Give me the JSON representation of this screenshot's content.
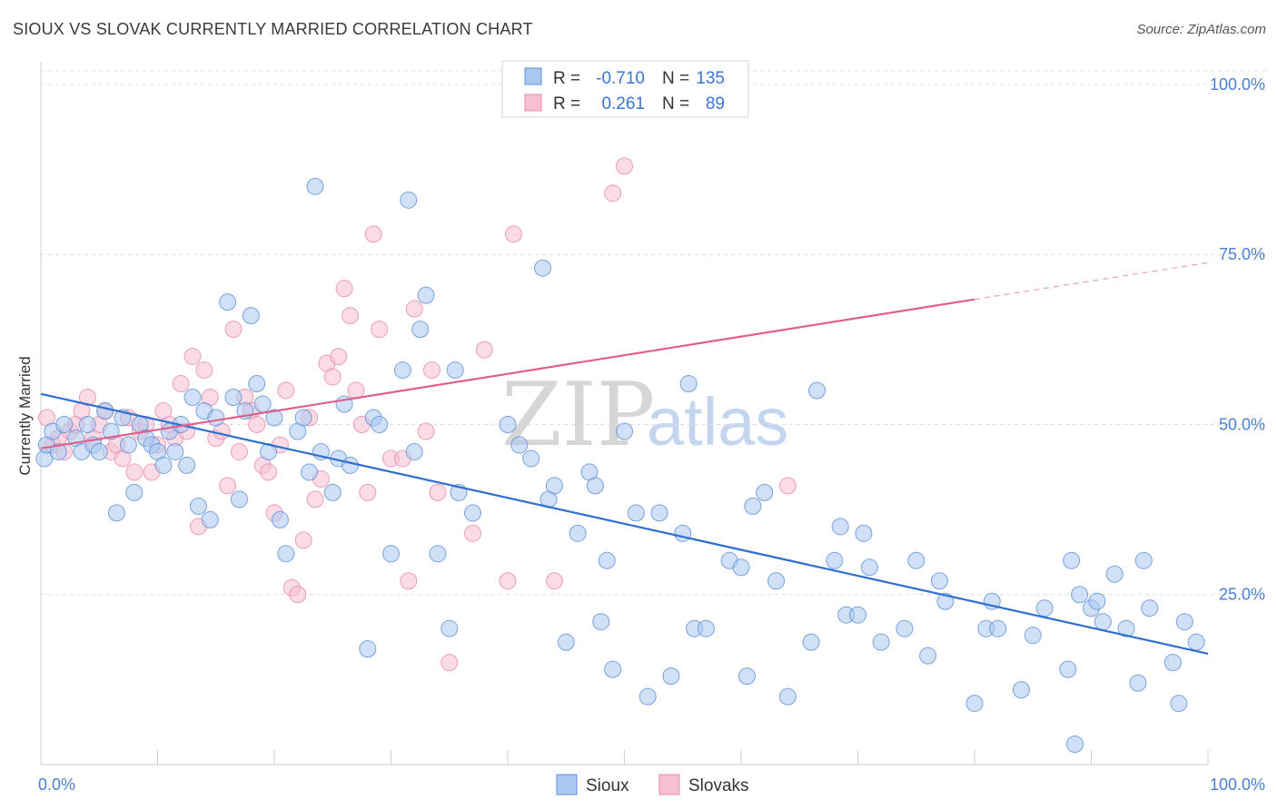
{
  "title": "SIOUX VS SLOVAK CURRENTLY MARRIED CORRELATION CHART",
  "source": "Source: ZipAtlas.com",
  "watermark": {
    "zip": "ZIP",
    "atlas": "atlas"
  },
  "colors": {
    "sioux_fill": "#a9c8f0",
    "sioux_stroke": "#5b8fd8",
    "sioux_line": "#2f6fd0",
    "slovak_fill": "#f7bfd2",
    "slovak_stroke": "#e88aab",
    "slovak_line": "#e0608c",
    "grid": "#dcdcdc",
    "axis_label": "#4a7fd4"
  },
  "legend": {
    "rows": [
      {
        "r_label": "R =",
        "r_value": "-0.710",
        "n_label": "N =",
        "n_value": "135"
      },
      {
        "r_label": "R =",
        "r_value": "0.261",
        "n_label": "N =",
        "n_value": "89"
      }
    ]
  },
  "bottom_legend": [
    "Sioux",
    "Slovaks"
  ],
  "chart_data": {
    "type": "scatter",
    "title": "SIOUX VS SLOVAK CURRENTLY MARRIED CORRELATION CHART",
    "xlabel": "",
    "ylabel": "Currently Married",
    "xlim": [
      0,
      100
    ],
    "ylim": [
      0,
      102
    ],
    "x_tick_labels": [
      "0.0%",
      "100.0%"
    ],
    "y_ticks": [
      25,
      50,
      75,
      100
    ],
    "y_tick_labels": [
      "25.0%",
      "50.0%",
      "75.0%",
      "100.0%"
    ],
    "grid": "horizontal dashed",
    "legend_placement": "top-center",
    "series": [
      {
        "name": "Sioux",
        "r": -0.71,
        "n": 135,
        "trend": {
          "x": [
            0,
            100
          ],
          "y": [
            54.5,
            16.3
          ],
          "dashed_from_x": null
        },
        "points": [
          [
            0.3,
            45
          ],
          [
            0.5,
            47
          ],
          [
            1,
            49
          ],
          [
            1.5,
            46
          ],
          [
            2,
            50
          ],
          [
            3,
            48
          ],
          [
            3.5,
            46
          ],
          [
            4,
            50
          ],
          [
            4.5,
            47
          ],
          [
            5,
            46
          ],
          [
            5.5,
            52
          ],
          [
            6,
            49
          ],
          [
            6.5,
            37
          ],
          [
            7,
            51
          ],
          [
            7.5,
            47
          ],
          [
            8,
            40
          ],
          [
            8.5,
            50
          ],
          [
            9,
            48
          ],
          [
            9.5,
            47
          ],
          [
            10,
            46
          ],
          [
            10.5,
            44
          ],
          [
            11,
            49
          ],
          [
            11.5,
            46
          ],
          [
            12,
            50
          ],
          [
            12.5,
            44
          ],
          [
            13,
            54
          ],
          [
            13.5,
            38
          ],
          [
            14,
            52
          ],
          [
            14.5,
            36
          ],
          [
            15,
            51
          ],
          [
            16,
            68
          ],
          [
            16.5,
            54
          ],
          [
            17,
            39
          ],
          [
            17.5,
            52
          ],
          [
            18,
            66
          ],
          [
            18.5,
            56
          ],
          [
            19,
            53
          ],
          [
            19.5,
            46
          ],
          [
            20,
            51
          ],
          [
            20.5,
            36
          ],
          [
            21,
            31
          ],
          [
            22,
            49
          ],
          [
            22.5,
            51
          ],
          [
            23,
            43
          ],
          [
            23.5,
            85
          ],
          [
            24,
            46
          ],
          [
            25,
            40
          ],
          [
            25.5,
            45
          ],
          [
            26,
            53
          ],
          [
            26.5,
            44
          ],
          [
            28,
            17
          ],
          [
            28.5,
            51
          ],
          [
            29,
            50
          ],
          [
            30,
            31
          ],
          [
            31,
            58
          ],
          [
            31.5,
            83
          ],
          [
            32,
            46
          ],
          [
            32.5,
            64
          ],
          [
            33,
            69
          ],
          [
            34,
            31
          ],
          [
            35,
            20
          ],
          [
            35.5,
            58
          ],
          [
            35.8,
            40
          ],
          [
            37,
            37
          ],
          [
            40,
            50
          ],
          [
            41,
            47
          ],
          [
            42,
            45
          ],
          [
            43,
            73
          ],
          [
            43.5,
            39
          ],
          [
            44,
            41
          ],
          [
            45,
            18
          ],
          [
            46,
            34
          ],
          [
            47,
            43
          ],
          [
            47.5,
            41
          ],
          [
            48,
            21
          ],
          [
            48.5,
            30
          ],
          [
            49,
            14
          ],
          [
            50,
            49
          ],
          [
            51,
            37
          ],
          [
            52,
            10
          ],
          [
            53,
            37
          ],
          [
            54,
            13
          ],
          [
            55,
            34
          ],
          [
            55.5,
            56
          ],
          [
            56,
            20
          ],
          [
            57,
            20
          ],
          [
            59,
            30
          ],
          [
            60,
            29
          ],
          [
            60.5,
            13
          ],
          [
            61,
            38
          ],
          [
            62,
            40
          ],
          [
            63,
            27
          ],
          [
            64,
            10
          ],
          [
            66,
            18
          ],
          [
            66.5,
            55
          ],
          [
            68,
            30
          ],
          [
            68.5,
            35
          ],
          [
            69,
            22
          ],
          [
            70,
            22
          ],
          [
            70.5,
            34
          ],
          [
            71,
            29
          ],
          [
            72,
            18
          ],
          [
            74,
            20
          ],
          [
            75,
            30
          ],
          [
            76,
            16
          ],
          [
            77,
            27
          ],
          [
            77.5,
            24
          ],
          [
            80,
            9
          ],
          [
            81,
            20
          ],
          [
            81.5,
            24
          ],
          [
            82,
            20
          ],
          [
            84,
            11
          ],
          [
            85,
            19
          ],
          [
            86,
            23
          ],
          [
            88,
            14
          ],
          [
            88.3,
            30
          ],
          [
            88.6,
            3
          ],
          [
            89,
            25
          ],
          [
            90,
            23
          ],
          [
            90.5,
            24
          ],
          [
            91,
            21
          ],
          [
            92,
            28
          ],
          [
            93,
            20
          ],
          [
            94,
            12
          ],
          [
            94.5,
            30
          ],
          [
            95,
            23
          ],
          [
            97,
            15
          ],
          [
            97.5,
            9
          ],
          [
            98,
            21
          ],
          [
            99,
            18
          ]
        ]
      },
      {
        "name": "Slovaks",
        "r": 0.261,
        "n": 89,
        "trend": {
          "x": [
            0,
            80,
            100
          ],
          "y": [
            46.5,
            68.4,
            73.8
          ],
          "dashed_from_x": 80
        },
        "points": [
          [
            0.5,
            51
          ],
          [
            1,
            47
          ],
          [
            1.5,
            48
          ],
          [
            2,
            46
          ],
          [
            2.5,
            49
          ],
          [
            3,
            50
          ],
          [
            3.5,
            52
          ],
          [
            4,
            54
          ],
          [
            4.5,
            48
          ],
          [
            5,
            50
          ],
          [
            5.5,
            52
          ],
          [
            6,
            46
          ],
          [
            6.5,
            47
          ],
          [
            7,
            45
          ],
          [
            7.5,
            51
          ],
          [
            8,
            43
          ],
          [
            8.5,
            49
          ],
          [
            9,
            50
          ],
          [
            9.5,
            43
          ],
          [
            10,
            47
          ],
          [
            10.5,
            52
          ],
          [
            11,
            50
          ],
          [
            11.5,
            48
          ],
          [
            12,
            56
          ],
          [
            12.5,
            49
          ],
          [
            13,
            60
          ],
          [
            13.5,
            35
          ],
          [
            14,
            58
          ],
          [
            14.5,
            54
          ],
          [
            15,
            48
          ],
          [
            15.5,
            49
          ],
          [
            16,
            41
          ],
          [
            16.5,
            64
          ],
          [
            17,
            46
          ],
          [
            17.5,
            54
          ],
          [
            18,
            52
          ],
          [
            18.5,
            50
          ],
          [
            19,
            44
          ],
          [
            19.5,
            43
          ],
          [
            20,
            37
          ],
          [
            20.5,
            47
          ],
          [
            21,
            55
          ],
          [
            21.5,
            26
          ],
          [
            22,
            25
          ],
          [
            22.5,
            33
          ],
          [
            23,
            51
          ],
          [
            23.5,
            39
          ],
          [
            24,
            42
          ],
          [
            24.5,
            59
          ],
          [
            25,
            57
          ],
          [
            25.5,
            60
          ],
          [
            26,
            70
          ],
          [
            26.5,
            66
          ],
          [
            27,
            55
          ],
          [
            27.5,
            50
          ],
          [
            28,
            40
          ],
          [
            28.5,
            78
          ],
          [
            29,
            64
          ],
          [
            30,
            45
          ],
          [
            31,
            45
          ],
          [
            31.5,
            27
          ],
          [
            32,
            67
          ],
          [
            33,
            49
          ],
          [
            33.5,
            58
          ],
          [
            34,
            40
          ],
          [
            35,
            15
          ],
          [
            37,
            34
          ],
          [
            38,
            61
          ],
          [
            40,
            27
          ],
          [
            40.5,
            78
          ],
          [
            44,
            27
          ],
          [
            49,
            84
          ],
          [
            50,
            88
          ],
          [
            55,
            100
          ],
          [
            64,
            41
          ]
        ]
      }
    ]
  }
}
